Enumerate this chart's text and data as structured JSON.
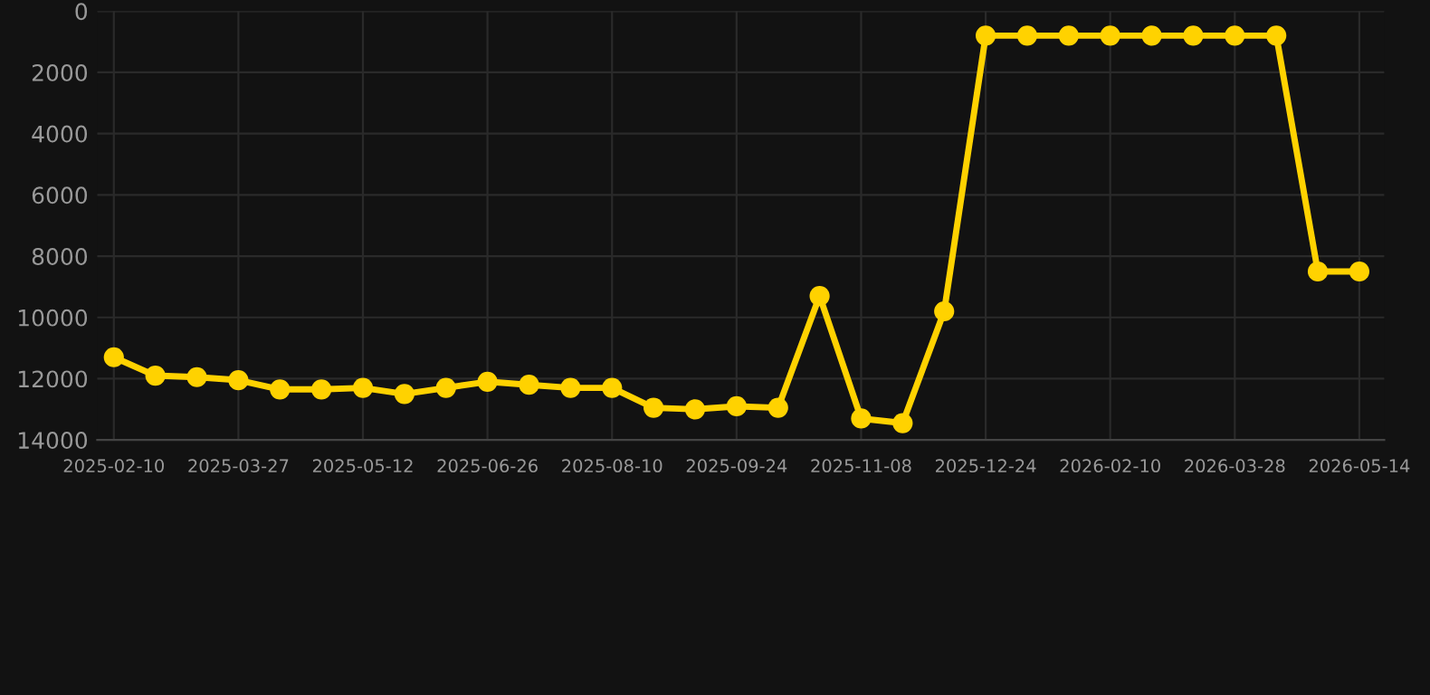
{
  "chart_data": {
    "type": "line",
    "categories": [
      "2025-02-10",
      null,
      null,
      "2025-03-27",
      null,
      null,
      "2025-05-12",
      null,
      null,
      "2025-06-26",
      null,
      null,
      "2025-08-10",
      null,
      null,
      "2025-09-24",
      null,
      null,
      "2025-11-08",
      null,
      null,
      "2025-12-24",
      null,
      null,
      "2026-02-10",
      null,
      null,
      "2026-03-28",
      null,
      null,
      "2026-05-14"
    ],
    "series": [
      {
        "color": "#ffd200",
        "values": [
          11300,
          11900,
          11950,
          12050,
          12350,
          12350,
          12300,
          12500,
          12300,
          12100,
          12200,
          12300,
          12300,
          12950,
          13000,
          12900,
          12950,
          9300,
          13300,
          13450,
          9800,
          800,
          800,
          800,
          800,
          800,
          800,
          800,
          800,
          8500,
          8500
        ]
      }
    ],
    "ylim": [
      14000,
      0
    ],
    "yticks": [
      0,
      2000,
      4000,
      6000,
      8000,
      10000,
      12000,
      14000
    ],
    "grid": true,
    "marker": "circle",
    "line_style": "solid"
  }
}
